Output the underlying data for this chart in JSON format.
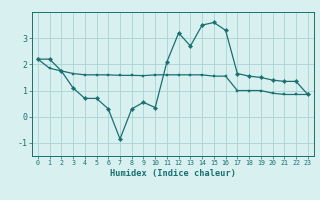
{
  "xlabel": "Humidex (Indice chaleur)",
  "x": [
    0,
    1,
    2,
    3,
    4,
    5,
    6,
    7,
    8,
    9,
    10,
    11,
    12,
    13,
    14,
    15,
    16,
    17,
    18,
    19,
    20,
    21,
    22,
    23
  ],
  "y_main": [
    2.2,
    2.2,
    1.75,
    1.1,
    0.7,
    0.7,
    0.3,
    -0.85,
    0.3,
    0.55,
    0.35,
    2.1,
    3.2,
    2.7,
    3.5,
    3.6,
    3.3,
    1.65,
    1.55,
    1.5,
    1.4,
    1.35,
    1.35,
    0.85
  ],
  "y_trend": [
    2.2,
    1.85,
    1.75,
    1.65,
    1.6,
    1.6,
    1.6,
    1.58,
    1.58,
    1.57,
    1.6,
    1.6,
    1.6,
    1.6,
    1.6,
    1.55,
    1.55,
    1.0,
    1.0,
    1.0,
    0.9,
    0.85,
    0.85,
    0.85
  ],
  "line_color": "#1a7070",
  "bg_color": "#d8f0f0",
  "grid_color": "#b0d8d8",
  "ylim": [
    -1.5,
    4.0
  ],
  "xlim": [
    -0.5,
    23.5
  ],
  "yticks": [
    -1,
    0,
    1,
    2,
    3
  ],
  "ytick_labels": [
    "-1",
    "0",
    "1",
    "2",
    "3"
  ]
}
